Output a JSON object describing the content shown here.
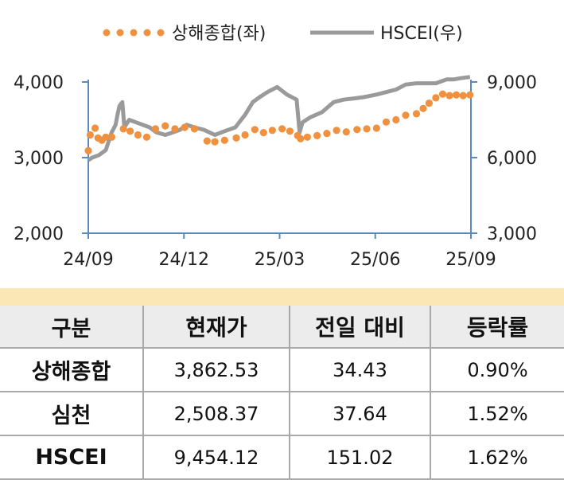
{
  "chart_data": {
    "type": "line",
    "x_ticks": [
      "24/09",
      "24/12",
      "25/03",
      "25/06",
      "25/09"
    ],
    "left_axis": {
      "ylim": [
        2000,
        4000
      ],
      "ticks": [
        "4,000",
        "3,000",
        "2,000"
      ]
    },
    "right_axis": {
      "ylim": [
        3000,
        9000
      ],
      "ticks": [
        "9,000",
        "6,000",
        "3,000"
      ]
    },
    "legend_position": "top",
    "series": [
      {
        "name": "상해종합(좌)",
        "axis": "left",
        "style": "dotted",
        "color": "#f0913f",
        "points": [
          [
            "2024-09-02",
            3090
          ],
          [
            "2024-09-04",
            3300
          ],
          [
            "2024-09-09",
            3390
          ],
          [
            "2024-09-12",
            3260
          ],
          [
            "2024-09-16",
            3230
          ],
          [
            "2024-09-20",
            3270
          ],
          [
            "2024-09-26",
            3270
          ],
          [
            "2024-10-08",
            3380
          ],
          [
            "2024-10-15",
            3350
          ],
          [
            "2024-10-23",
            3300
          ],
          [
            "2024-11-01",
            3270
          ],
          [
            "2024-11-10",
            3380
          ],
          [
            "2024-11-20",
            3420
          ],
          [
            "2024-11-30",
            3380
          ],
          [
            "2024-12-10",
            3400
          ],
          [
            "2024-12-20",
            3380
          ],
          [
            "2025-01-02",
            3220
          ],
          [
            "2025-01-10",
            3210
          ],
          [
            "2025-01-20",
            3230
          ],
          [
            "2025-02-01",
            3260
          ],
          [
            "2025-02-10",
            3300
          ],
          [
            "2025-02-20",
            3370
          ],
          [
            "2025-03-01",
            3330
          ],
          [
            "2025-03-10",
            3360
          ],
          [
            "2025-03-20",
            3380
          ],
          [
            "2025-03-28",
            3350
          ],
          [
            "2025-04-05",
            3290
          ],
          [
            "2025-04-08",
            3250
          ],
          [
            "2025-04-15",
            3270
          ],
          [
            "2025-04-25",
            3290
          ],
          [
            "2025-05-05",
            3320
          ],
          [
            "2025-05-15",
            3360
          ],
          [
            "2025-05-25",
            3340
          ],
          [
            "2025-06-05",
            3370
          ],
          [
            "2025-06-15",
            3380
          ],
          [
            "2025-06-25",
            3390
          ],
          [
            "2025-07-05",
            3470
          ],
          [
            "2025-07-15",
            3500
          ],
          [
            "2025-07-25",
            3560
          ],
          [
            "2025-08-05",
            3580
          ],
          [
            "2025-08-12",
            3650
          ],
          [
            "2025-08-18",
            3720
          ],
          [
            "2025-08-25",
            3790
          ],
          [
            "2025-09-01",
            3840
          ],
          [
            "2025-09-08",
            3820
          ],
          [
            "2025-09-15",
            3830
          ],
          [
            "2025-09-22",
            3820
          ],
          [
            "2025-09-29",
            3830
          ]
        ]
      },
      {
        "name": "HSCEI(우)",
        "axis": "right",
        "style": "line",
        "color": "#9a9a9a",
        "points": [
          [
            "2024-09-02",
            5900
          ],
          [
            "2024-09-06",
            6000
          ],
          [
            "2024-09-13",
            6100
          ],
          [
            "2024-09-20",
            6300
          ],
          [
            "2024-09-26",
            7000
          ],
          [
            "2024-09-30",
            7300
          ],
          [
            "2024-10-02",
            7700
          ],
          [
            "2024-10-04",
            8050
          ],
          [
            "2024-10-07",
            8200
          ],
          [
            "2024-10-09",
            7200
          ],
          [
            "2024-10-14",
            7500
          ],
          [
            "2024-10-21",
            7400
          ],
          [
            "2024-10-28",
            7300
          ],
          [
            "2024-11-04",
            7200
          ],
          [
            "2024-11-11",
            7000
          ],
          [
            "2024-11-20",
            6900
          ],
          [
            "2024-11-28",
            7000
          ],
          [
            "2024-12-05",
            7100
          ],
          [
            "2024-12-12",
            7300
          ],
          [
            "2024-12-20",
            7200
          ],
          [
            "2024-12-30",
            7100
          ],
          [
            "2025-01-10",
            6900
          ],
          [
            "2025-01-20",
            7050
          ],
          [
            "2025-01-31",
            7200
          ],
          [
            "2025-02-10",
            7700
          ],
          [
            "2025-02-18",
            8200
          ],
          [
            "2025-02-25",
            8400
          ],
          [
            "2025-03-05",
            8600
          ],
          [
            "2025-03-15",
            8800
          ],
          [
            "2025-03-25",
            8500
          ],
          [
            "2025-04-04",
            8300
          ],
          [
            "2025-04-07",
            7000
          ],
          [
            "2025-04-10",
            7400
          ],
          [
            "2025-04-18",
            7600
          ],
          [
            "2025-04-30",
            7800
          ],
          [
            "2025-05-12",
            8200
          ],
          [
            "2025-05-22",
            8300
          ],
          [
            "2025-06-02",
            8350
          ],
          [
            "2025-06-12",
            8400
          ],
          [
            "2025-06-25",
            8500
          ],
          [
            "2025-07-05",
            8600
          ],
          [
            "2025-07-15",
            8700
          ],
          [
            "2025-07-25",
            8900
          ],
          [
            "2025-08-05",
            8950
          ],
          [
            "2025-08-15",
            8950
          ],
          [
            "2025-08-25",
            8950
          ],
          [
            "2025-09-05",
            9100
          ],
          [
            "2025-09-12",
            9100
          ],
          [
            "2025-09-19",
            9150
          ],
          [
            "2025-09-29",
            9200
          ]
        ]
      }
    ]
  },
  "table": {
    "headers": [
      "구분",
      "현재가",
      "전일 대비",
      "등락률"
    ],
    "rows": [
      [
        "상해종합",
        "3,862.53",
        "34.43",
        "0.90%"
      ],
      [
        "심천",
        "2,508.37",
        "37.64",
        "1.52%"
      ],
      [
        "HSCEI",
        "9,454.12",
        "151.02",
        "1.62%"
      ]
    ]
  },
  "colors": {
    "axis": "#5b87c3",
    "band": "#fbe7b5",
    "header_bg": "#ececec",
    "grid_border": "#a9a9a9"
  }
}
